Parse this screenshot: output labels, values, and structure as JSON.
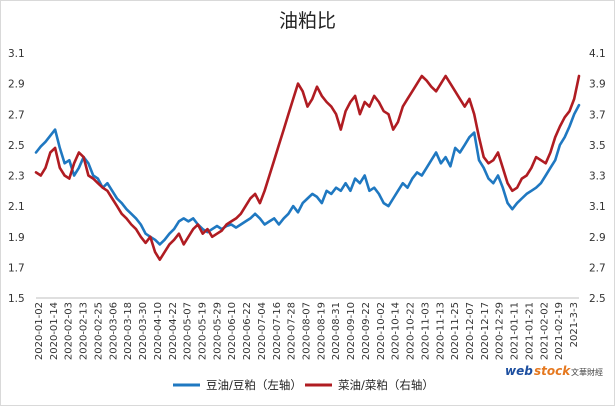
{
  "chart_data": {
    "type": "line",
    "title": "油粕比",
    "y_left": {
      "min": 1.5,
      "max": 3.1,
      "ticks": [
        "1.5",
        "1.7",
        "1.9",
        "2.1",
        "2.3",
        "2.5",
        "2.7",
        "2.9",
        "3.1"
      ]
    },
    "y_right": {
      "min": 2.5,
      "max": 4.1,
      "ticks": [
        "2.5",
        "2.7",
        "2.9",
        "3.1",
        "3.3",
        "3.5",
        "3.7",
        "3.9",
        "4.1"
      ]
    },
    "x_tick_labels": [
      "2020-01-02",
      "2020-01-14",
      "2020-02-03",
      "2020-02-13",
      "2020-02-25",
      "2020-03-06",
      "2020-03-18",
      "2020-03-30",
      "2020-04-10",
      "2020-04-22",
      "2020-05-07",
      "2020-05-19",
      "2020-05-29",
      "2020-06-10",
      "2020-06-22",
      "2020-07-04",
      "2020-07-16",
      "2020-07-28",
      "2020-08-07",
      "2020-08-19",
      "2020-08-31",
      "2020-09-10",
      "2020-09-22",
      "2020-10-02",
      "2020-10-14",
      "2020-10-22",
      "2020-11-03",
      "2020-11-13",
      "2020-11-25",
      "2020-12-07",
      "2020-12-17",
      "2020-12-29",
      "2021-01-11",
      "2021-01-21",
      "2021-02-02",
      "2021-02-19",
      "2021-3-3"
    ],
    "grid": false,
    "legend_position": "bottom",
    "series": [
      {
        "name": "豆油/豆粕（左轴）",
        "axis": "left",
        "color": "#1f78c1",
        "values": [
          2.45,
          2.49,
          2.52,
          2.56,
          2.6,
          2.48,
          2.38,
          2.4,
          2.3,
          2.35,
          2.42,
          2.38,
          2.3,
          2.28,
          2.22,
          2.25,
          2.2,
          2.15,
          2.12,
          2.08,
          2.05,
          2.02,
          1.98,
          1.92,
          1.9,
          1.88,
          1.85,
          1.88,
          1.92,
          1.95,
          2.0,
          2.02,
          2.0,
          2.02,
          1.98,
          1.95,
          1.93,
          1.95,
          1.97,
          1.95,
          1.97,
          1.98,
          1.96,
          1.98,
          2.0,
          2.02,
          2.05,
          2.02,
          1.98,
          2.0,
          2.02,
          1.98,
          2.02,
          2.05,
          2.1,
          2.06,
          2.12,
          2.15,
          2.18,
          2.16,
          2.12,
          2.2,
          2.18,
          2.22,
          2.2,
          2.25,
          2.2,
          2.28,
          2.25,
          2.3,
          2.2,
          2.22,
          2.18,
          2.12,
          2.1,
          2.15,
          2.2,
          2.25,
          2.22,
          2.28,
          2.32,
          2.3,
          2.35,
          2.4,
          2.45,
          2.38,
          2.42,
          2.36,
          2.48,
          2.45,
          2.5,
          2.55,
          2.58,
          2.4,
          2.35,
          2.28,
          2.25,
          2.3,
          2.22,
          2.12,
          2.08,
          2.12,
          2.15,
          2.18,
          2.2,
          2.22,
          2.25,
          2.3,
          2.35,
          2.4,
          2.5,
          2.55,
          2.62,
          2.7,
          2.76
        ]
      },
      {
        "name": "菜油/菜粕（右轴）",
        "axis": "right",
        "color": "#b01c22",
        "values": [
          3.32,
          3.3,
          3.35,
          3.45,
          3.48,
          3.35,
          3.3,
          3.28,
          3.38,
          3.45,
          3.42,
          3.3,
          3.28,
          3.25,
          3.22,
          3.2,
          3.15,
          3.1,
          3.05,
          3.02,
          2.98,
          2.95,
          2.9,
          2.86,
          2.9,
          2.8,
          2.75,
          2.8,
          2.85,
          2.88,
          2.92,
          2.85,
          2.9,
          2.95,
          2.98,
          2.92,
          2.95,
          2.9,
          2.92,
          2.94,
          2.98,
          3.0,
          3.02,
          3.05,
          3.1,
          3.15,
          3.18,
          3.12,
          3.2,
          3.3,
          3.4,
          3.5,
          3.6,
          3.7,
          3.8,
          3.9,
          3.85,
          3.75,
          3.8,
          3.88,
          3.82,
          3.78,
          3.75,
          3.7,
          3.6,
          3.72,
          3.78,
          3.82,
          3.7,
          3.78,
          3.75,
          3.82,
          3.78,
          3.72,
          3.7,
          3.6,
          3.65,
          3.75,
          3.8,
          3.85,
          3.9,
          3.95,
          3.92,
          3.88,
          3.85,
          3.9,
          3.95,
          3.9,
          3.85,
          3.8,
          3.75,
          3.8,
          3.7,
          3.55,
          3.42,
          3.38,
          3.4,
          3.45,
          3.35,
          3.25,
          3.2,
          3.22,
          3.28,
          3.3,
          3.35,
          3.42,
          3.4,
          3.38,
          3.45,
          3.55,
          3.62,
          3.68,
          3.72,
          3.8,
          3.95
        ]
      }
    ]
  }
}
